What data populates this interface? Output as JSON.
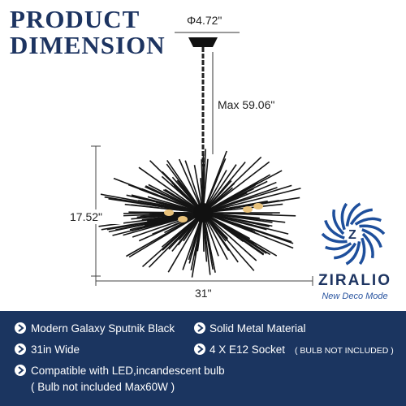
{
  "header": {
    "title_line1": "PRODUCT",
    "title_line2": "DIMENSION"
  },
  "dimensions": {
    "canopy": "Φ4.72\"",
    "chain": "Max 59.06\"",
    "height": "17.52\"",
    "width": "31\""
  },
  "brand": {
    "name": "ZIRALIO",
    "tagline": "New Deco Mode"
  },
  "features": {
    "row1_left": "Modern Galaxy Sputnik Black",
    "row1_right": "Solid Metal Material",
    "row2_left": "31in Wide",
    "row2_right": "4 X E12 Socket",
    "row2_right_note": "( BULB NOT INCLUDED )",
    "row3_line1": "Compatible with LED,incandescent bulb",
    "row3_line2": "( Bulb not included Max60W )"
  }
}
